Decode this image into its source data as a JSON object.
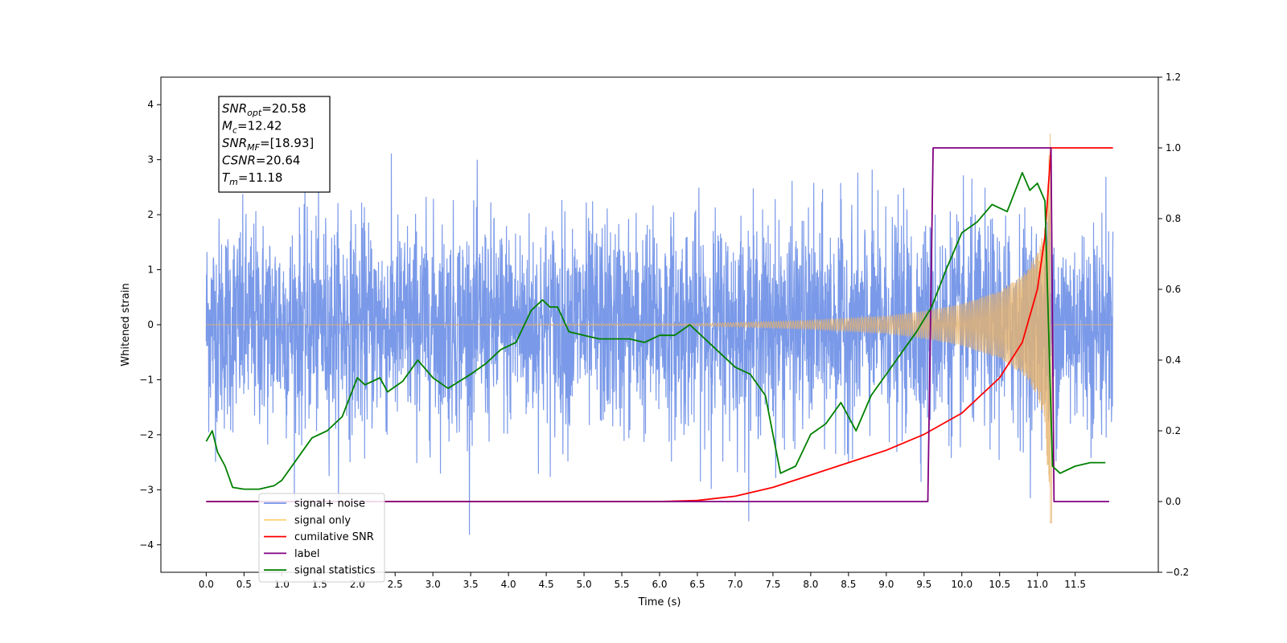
{
  "chart_data": {
    "type": "line",
    "xlabel": "Time (s)",
    "ylabel": "Whitened strain",
    "xlim": [
      -0.6,
      12.6
    ],
    "ylim": [
      -4.5,
      4.5
    ],
    "y2lim": [
      -0.2,
      1.2
    ],
    "x_ticks": [
      "0.0",
      "0.5",
      "1.0",
      "1.5",
      "2.0",
      "2.5",
      "3.0",
      "3.5",
      "4.0",
      "4.5",
      "5.0",
      "5.5",
      "6.0",
      "6.5",
      "7.0",
      "7.5",
      "8.0",
      "8.5",
      "9.0",
      "9.5",
      "10.0",
      "10.5",
      "11.0",
      "11.5"
    ],
    "y_ticks": [
      "4",
      "3",
      "2",
      "1",
      "0",
      "−1",
      "−2",
      "−3",
      "−4"
    ],
    "y2_ticks": [
      "1.2",
      "1.0",
      "0.8",
      "0.6",
      "0.4",
      "0.2",
      "0.0",
      "−0.2"
    ],
    "grid": false,
    "legend_position": "bottom-left",
    "annotation": {
      "lines": [
        {
          "base": "SNR",
          "sub": "opt",
          "value": "=20.58"
        },
        {
          "base": "M",
          "sub": "c",
          "value": "=12.42"
        },
        {
          "base": "SNR",
          "sub": "MF",
          "value": "=[18.93]"
        },
        {
          "base": "CSNR",
          "sub": "",
          "value": "=20.64"
        },
        {
          "base": "T",
          "sub": "m",
          "value": "=11.18"
        }
      ]
    },
    "legend": [
      {
        "label": "signal+ noise",
        "color": "#7393e7"
      },
      {
        "label": "signal only",
        "color": "#ffd27a"
      },
      {
        "label": "cumilative SNR",
        "color": "#ff0000"
      },
      {
        "label": "label",
        "color": "#800080"
      },
      {
        "label": "signal statistics",
        "color": "#008000"
      }
    ],
    "series": [
      {
        "name": "signal+ noise",
        "axis": "left",
        "color": "#7393e7",
        "noise_amplitude_range": [
          -4.1,
          4.1
        ],
        "x_range": [
          0.0,
          12.0
        ]
      },
      {
        "name": "signal only",
        "axis": "left",
        "color": "#e6b36e",
        "x_range": [
          0.0,
          12.0
        ],
        "envelope": {
          "x": [
            0.0,
            6.5,
            8.0,
            9.0,
            9.5,
            10.0,
            10.5,
            10.8,
            11.0,
            11.1,
            11.17
          ],
          "y": [
            0.0,
            0.02,
            0.08,
            0.16,
            0.25,
            0.38,
            0.62,
            0.9,
            1.3,
            1.8,
            3.5
          ]
        },
        "merger_time": 11.17
      },
      {
        "name": "cumilative SNR",
        "axis": "right",
        "color": "#ff0000",
        "x": [
          0.0,
          6.0,
          6.5,
          7.0,
          7.5,
          8.0,
          8.5,
          9.0,
          9.5,
          10.0,
          10.5,
          10.8,
          11.0,
          11.1,
          11.18,
          11.19,
          12.0
        ],
        "y": [
          0.0,
          0.0,
          0.003,
          0.015,
          0.04,
          0.075,
          0.11,
          0.145,
          0.19,
          0.25,
          0.35,
          0.45,
          0.6,
          0.75,
          1.0,
          1.0,
          1.0
        ]
      },
      {
        "name": "label",
        "axis": "right",
        "color": "#800080",
        "x": [
          0.0,
          9.55,
          9.62,
          11.18,
          11.22,
          11.95
        ],
        "y": [
          0.0,
          0.0,
          1.0,
          1.0,
          0.0,
          0.0
        ]
      },
      {
        "name": "signal statistics",
        "axis": "right",
        "color": "#008000",
        "x": [
          0.0,
          0.08,
          0.15,
          0.25,
          0.35,
          0.5,
          0.7,
          0.9,
          1.0,
          1.2,
          1.4,
          1.6,
          1.8,
          2.0,
          2.1,
          2.3,
          2.4,
          2.6,
          2.8,
          3.0,
          3.2,
          3.5,
          3.7,
          3.9,
          4.1,
          4.3,
          4.45,
          4.55,
          4.65,
          4.8,
          5.0,
          5.2,
          5.4,
          5.6,
          5.8,
          6.0,
          6.2,
          6.4,
          6.6,
          6.8,
          7.0,
          7.2,
          7.4,
          7.6,
          7.8,
          8.0,
          8.2,
          8.4,
          8.6,
          8.8,
          9.0,
          9.2,
          9.4,
          9.6,
          9.8,
          10.0,
          10.2,
          10.4,
          10.6,
          10.8,
          10.9,
          11.0,
          11.1,
          11.2,
          11.3,
          11.5,
          11.7,
          11.9
        ],
        "y": [
          0.17,
          0.2,
          0.14,
          0.1,
          0.04,
          0.035,
          0.035,
          0.045,
          0.06,
          0.12,
          0.18,
          0.2,
          0.24,
          0.35,
          0.33,
          0.35,
          0.31,
          0.34,
          0.4,
          0.35,
          0.32,
          0.36,
          0.39,
          0.43,
          0.45,
          0.54,
          0.57,
          0.55,
          0.55,
          0.48,
          0.47,
          0.46,
          0.46,
          0.46,
          0.45,
          0.47,
          0.47,
          0.5,
          0.46,
          0.42,
          0.38,
          0.36,
          0.3,
          0.08,
          0.1,
          0.19,
          0.22,
          0.28,
          0.2,
          0.3,
          0.36,
          0.42,
          0.48,
          0.55,
          0.66,
          0.76,
          0.79,
          0.84,
          0.82,
          0.93,
          0.88,
          0.9,
          0.85,
          0.1,
          0.08,
          0.1,
          0.11,
          0.11
        ]
      }
    ]
  }
}
